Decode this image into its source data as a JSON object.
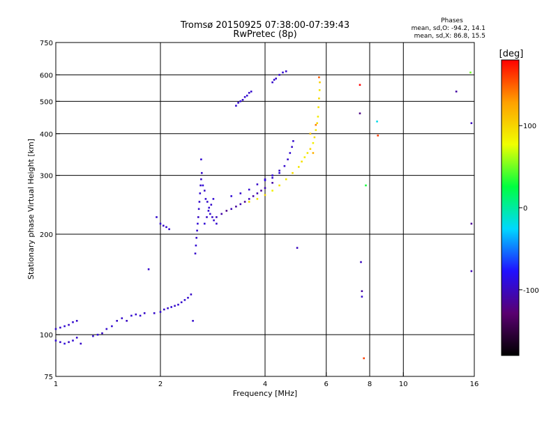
{
  "title": "Tromsø 20150925 07:38:00-07:39:43",
  "subtitle": "RwPretec (8p)",
  "stats": {
    "heading": "Phases",
    "line1": "mean, sd,O: -94.2, 14.1",
    "line2": "mean, sd,X:  86.8, 15.5"
  },
  "colorbar": {
    "label": "[deg]",
    "min": -180,
    "max": 180,
    "ticks": [
      {
        "value": 100,
        "label": "100"
      },
      {
        "value": 0,
        "label": "0"
      },
      {
        "value": -100,
        "label": "-100"
      }
    ],
    "colors": [
      "#000000",
      "#5a0070",
      "#2010ff",
      "#00d8ff",
      "#00ff40",
      "#f0ff00",
      "#ffa000",
      "#ff0000"
    ]
  },
  "chart_data": {
    "type": "scatter",
    "xlabel": "Frequency [MHz]",
    "ylabel": "Stationary phase Virtual Height [km]",
    "x_scale": "log",
    "y_scale": "log",
    "xlim": [
      1,
      16
    ],
    "ylim": [
      75,
      750
    ],
    "grid": true,
    "x_ticks": [
      {
        "value": 1,
        "label": "1"
      },
      {
        "value": 2,
        "label": "2"
      },
      {
        "value": 4,
        "label": "4"
      },
      {
        "value": 6,
        "label": "6"
      },
      {
        "value": 8,
        "label": "8"
      },
      {
        "value": 10,
        "label": "10"
      },
      {
        "value": 16,
        "label": "16"
      }
    ],
    "x_grid": [
      2,
      4,
      6,
      8,
      10
    ],
    "y_ticks": [
      {
        "value": 75,
        "label": "75"
      },
      {
        "value": 100,
        "label": "100"
      },
      {
        "value": 200,
        "label": "200"
      },
      {
        "value": 300,
        "label": "300"
      },
      {
        "value": 400,
        "label": "400"
      },
      {
        "value": 500,
        "label": "500"
      },
      {
        "value": 600,
        "label": "600"
      },
      {
        "value": 750,
        "label": "750"
      }
    ],
    "y_grid": [
      100,
      200,
      300,
      400,
      500,
      600
    ],
    "series": [
      {
        "points": [
          [
            1.0,
            104,
            -95
          ],
          [
            1.03,
            105,
            -97
          ],
          [
            1.06,
            106,
            -92
          ],
          [
            1.09,
            107,
            -98
          ],
          [
            1.12,
            109,
            -94
          ],
          [
            1.15,
            110,
            -96
          ],
          [
            1.0,
            96,
            -92
          ],
          [
            1.03,
            95,
            -96
          ],
          [
            1.06,
            94,
            -90
          ],
          [
            1.09,
            95,
            -99
          ],
          [
            1.12,
            96,
            -93
          ],
          [
            1.15,
            98,
            -95
          ],
          [
            1.18,
            94,
            -97
          ],
          [
            1.28,
            99,
            -95
          ],
          [
            1.32,
            100,
            -92
          ],
          [
            1.36,
            101,
            -98
          ],
          [
            1.4,
            104,
            -95
          ],
          [
            1.45,
            106,
            -93
          ],
          [
            1.5,
            110,
            -97
          ],
          [
            1.55,
            112,
            -95
          ],
          [
            1.6,
            110,
            -99
          ],
          [
            1.65,
            114,
            -92
          ],
          [
            1.7,
            115,
            -96
          ],
          [
            1.75,
            114,
            -94
          ],
          [
            1.8,
            116,
            -97
          ],
          [
            1.85,
            157,
            -95
          ],
          [
            1.92,
            116,
            -96
          ],
          [
            2.0,
            117,
            -93
          ],
          [
            2.05,
            119,
            -97
          ],
          [
            2.1,
            120,
            -95
          ],
          [
            2.15,
            121,
            -92
          ],
          [
            2.2,
            122,
            -98
          ],
          [
            2.25,
            123,
            -94
          ],
          [
            2.3,
            125,
            -96
          ],
          [
            2.35,
            127,
            -93
          ],
          [
            2.4,
            129,
            -95
          ],
          [
            2.45,
            132,
            -97
          ],
          [
            1.95,
            225,
            -95
          ],
          [
            2.0,
            215,
            -92
          ],
          [
            2.04,
            212,
            -98
          ],
          [
            2.08,
            210,
            -94
          ],
          [
            2.12,
            207,
            -96
          ],
          [
            2.48,
            110,
            -95
          ],
          [
            2.52,
            175,
            -96
          ],
          [
            2.53,
            185,
            -93
          ],
          [
            2.54,
            195,
            -97
          ],
          [
            2.55,
            205,
            -95
          ],
          [
            2.56,
            215,
            -92
          ],
          [
            2.57,
            225,
            -98
          ],
          [
            2.58,
            238,
            -94
          ],
          [
            2.59,
            250,
            -96
          ],
          [
            2.6,
            265,
            -93
          ],
          [
            2.61,
            280,
            -95
          ],
          [
            2.62,
            292,
            -97
          ],
          [
            2.63,
            305,
            -96
          ],
          [
            2.62,
            335,
            -94
          ],
          [
            2.65,
            280,
            -92
          ],
          [
            2.68,
            270,
            -98
          ],
          [
            2.7,
            255,
            -94
          ],
          [
            2.73,
            250,
            -96
          ],
          [
            2.76,
            240,
            -93
          ],
          [
            2.78,
            230,
            -95
          ],
          [
            2.82,
            225,
            -97
          ],
          [
            2.85,
            220,
            -96
          ],
          [
            2.9,
            215,
            -94
          ],
          [
            2.68,
            215,
            -92
          ],
          [
            2.72,
            225,
            -98
          ],
          [
            2.75,
            235,
            -94
          ],
          [
            2.8,
            245,
            -96
          ],
          [
            2.84,
            255,
            -93
          ]
        ]
      },
      {
        "points": [
          [
            2.9,
            225,
            -100
          ],
          [
            3.0,
            230,
            -108
          ],
          [
            3.1,
            235,
            -118
          ],
          [
            3.2,
            238,
            -103
          ],
          [
            3.3,
            242,
            -112
          ],
          [
            3.4,
            246,
            -105
          ],
          [
            3.5,
            250,
            -115
          ],
          [
            3.6,
            255,
            -102
          ],
          [
            3.7,
            260,
            -110
          ],
          [
            3.8,
            265,
            -106
          ],
          [
            3.9,
            270,
            -113
          ],
          [
            4.0,
            275,
            -104
          ],
          [
            4.2,
            285,
            -109
          ]
        ]
      },
      {
        "points": [
          [
            3.2,
            260,
            -92
          ],
          [
            3.4,
            265,
            -96
          ],
          [
            3.6,
            272,
            -94
          ],
          [
            3.8,
            282,
            -97
          ],
          [
            4.0,
            292,
            -95
          ],
          [
            4.2,
            300,
            -93
          ],
          [
            4.4,
            310,
            -98
          ],
          [
            4.55,
            320,
            -95
          ],
          [
            4.65,
            335,
            -96
          ],
          [
            4.72,
            350,
            -94
          ],
          [
            4.78,
            365,
            -97
          ],
          [
            4.82,
            380,
            -95
          ],
          [
            4.0,
            290,
            -90
          ],
          [
            4.2,
            295,
            -96
          ],
          [
            4.4,
            305,
            -92
          ]
        ]
      },
      {
        "points": [
          [
            3.3,
            485,
            -94
          ],
          [
            3.35,
            495,
            -96
          ],
          [
            3.4,
            500,
            -92
          ],
          [
            3.45,
            505,
            -98
          ],
          [
            3.5,
            515,
            -95
          ],
          [
            3.55,
            520,
            -93
          ],
          [
            3.6,
            530,
            -97
          ],
          [
            3.65,
            535,
            -95
          ],
          [
            4.2,
            570,
            -96
          ],
          [
            4.25,
            580,
            -94
          ],
          [
            4.3,
            585,
            -98
          ],
          [
            4.4,
            600,
            -95
          ],
          [
            4.5,
            610,
            -93
          ],
          [
            4.6,
            615,
            -96
          ],
          [
            4.95,
            182,
            -100
          ]
        ]
      },
      {
        "points": [
          [
            3.6,
            250,
            95
          ],
          [
            3.8,
            255,
            90
          ],
          [
            4.0,
            262,
            100
          ],
          [
            4.2,
            270,
            85
          ],
          [
            4.4,
            280,
            92
          ],
          [
            4.6,
            292,
            88
          ],
          [
            4.8,
            305,
            96
          ],
          [
            5.0,
            318,
            90
          ],
          [
            5.1,
            330,
            94
          ],
          [
            5.2,
            340,
            88
          ],
          [
            5.3,
            350,
            92
          ],
          [
            5.4,
            360,
            100
          ],
          [
            5.5,
            375,
            86
          ],
          [
            5.55,
            390,
            95
          ],
          [
            5.6,
            410,
            90
          ],
          [
            5.65,
            430,
            98
          ],
          [
            5.68,
            450,
            88
          ],
          [
            5.7,
            480,
            93
          ],
          [
            5.72,
            510,
            97
          ],
          [
            5.74,
            540,
            92
          ],
          [
            5.75,
            570,
            105
          ],
          [
            5.72,
            590,
            150
          ],
          [
            5.6,
            425,
            140
          ],
          [
            5.5,
            350,
            120
          ],
          [
            5.4,
            400,
            110
          ]
        ]
      },
      {
        "points": [
          [
            7.5,
            560,
            180
          ],
          [
            7.5,
            460,
            -120
          ],
          [
            7.55,
            165,
            -100
          ],
          [
            7.6,
            135,
            -110
          ],
          [
            7.6,
            130,
            -95
          ],
          [
            7.8,
            280,
            30
          ],
          [
            7.7,
            85,
            160
          ],
          [
            8.4,
            435,
            -20
          ],
          [
            8.45,
            395,
            160
          ],
          [
            14.2,
            535,
            -110
          ],
          [
            15.6,
            610,
            50
          ],
          [
            15.7,
            430,
            -100
          ],
          [
            15.7,
            215,
            -115
          ],
          [
            15.7,
            155,
            -105
          ]
        ]
      }
    ]
  }
}
